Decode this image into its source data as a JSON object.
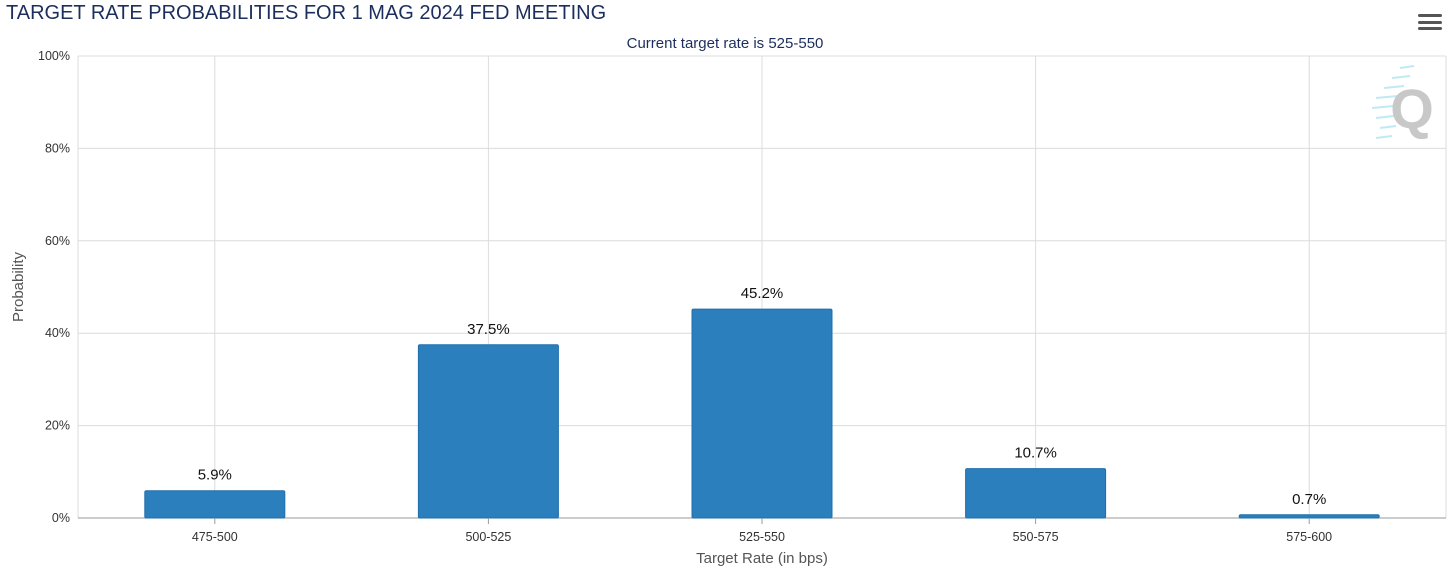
{
  "header": {
    "title": "TARGET RATE PROBABILITIES FOR 1 MAG 2024 FED MEETING"
  },
  "menu": {
    "icon": "hamburger-menu-icon"
  },
  "watermark": {
    "icon": "logo-q-icon",
    "text": "Q"
  },
  "colors": {
    "bar": "#2b7fbc",
    "bar_border": "#1f6fad",
    "title": "#1c2e5c",
    "grid": "#dcdcdc"
  },
  "chart_data": {
    "type": "bar",
    "title": "TARGET RATE PROBABILITIES FOR 1 MAG 2024 FED MEETING",
    "subtitle": "Current target rate is 525-550",
    "xlabel": "Target Rate (in bps)",
    "ylabel": "Probability",
    "categories": [
      "475-500",
      "500-525",
      "525-550",
      "550-575",
      "575-600"
    ],
    "values": [
      5.9,
      37.5,
      45.2,
      10.7,
      0.7
    ],
    "data_labels": [
      "5.9%",
      "37.5%",
      "45.2%",
      "10.7%",
      "0.7%"
    ],
    "ylim": [
      0,
      100
    ],
    "yticks": [
      0,
      20,
      40,
      60,
      80,
      100
    ],
    "ytick_labels": [
      "0%",
      "20%",
      "40%",
      "60%",
      "80%",
      "100%"
    ],
    "grid": true,
    "legend": "none"
  }
}
